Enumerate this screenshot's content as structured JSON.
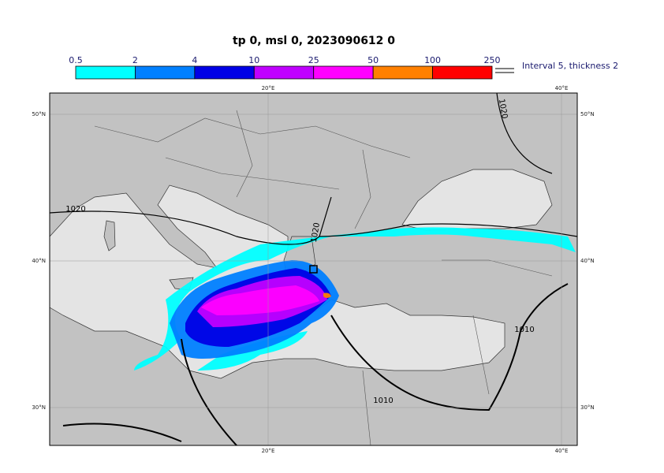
{
  "title": "tp 0, msl 0, 2023090612 0",
  "colorbar": {
    "ticks": [
      0.5,
      2,
      4,
      10,
      25,
      50,
      100,
      250
    ],
    "colors": [
      "#00ffff",
      "#0080ff",
      "#0000e6",
      "#c000ff",
      "#ff00ff",
      "#ff8000",
      "#ff0000"
    ]
  },
  "legend": "Interval 5, thickness 2",
  "map": {
    "lon_labels": [
      "20°E",
      "40°E"
    ],
    "lat_labels": [
      "50°N",
      "40°N",
      "30°N"
    ],
    "contour_labels": [
      "1020",
      "1020",
      "1020",
      "1010",
      "1010"
    ]
  }
}
